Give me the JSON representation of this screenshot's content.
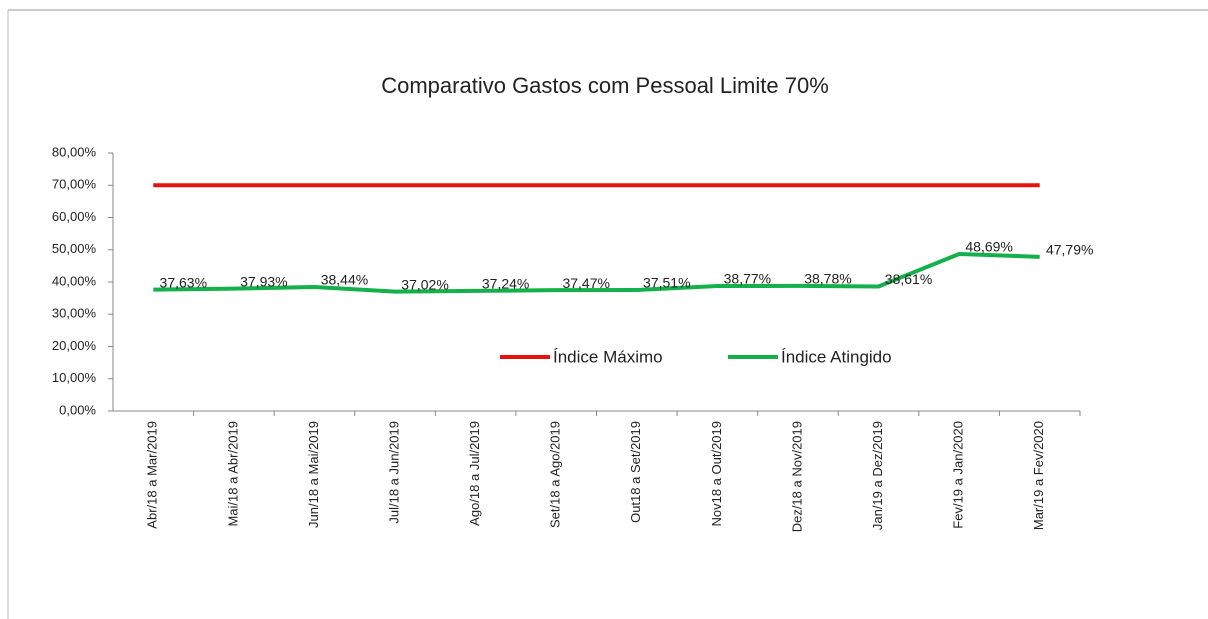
{
  "chart_data": {
    "type": "line",
    "title": "Comparativo Gastos com Pessoal Limite 70%",
    "categories": [
      "Abr/18 a Mar/2019",
      "Mai/18 a Abr/2019",
      "Jun/18 a Mai/2019",
      "Jul/18 a Jun/2019",
      "Ago/18 a Jul/2019",
      "Set/18 a Ago/2019",
      "Out18 a Set/2019",
      "Nov18 a Out/2019",
      "Dez/18 a Nov/2019",
      "Jan/19 a Dez/2019",
      "Fev/19 a Jan/2020",
      "Mar/19 a Fev/2020"
    ],
    "series": [
      {
        "name": "Índice Máximo",
        "color": "#e8120c",
        "values": [
          70,
          70,
          70,
          70,
          70,
          70,
          70,
          70,
          70,
          70,
          70,
          70
        ]
      },
      {
        "name": "Índice Atingido",
        "color": "#14b14b",
        "values": [
          37.63,
          37.93,
          38.44,
          37.02,
          37.24,
          37.47,
          37.51,
          38.77,
          38.78,
          38.61,
          48.69,
          47.79
        ],
        "value_labels": [
          "37,63%",
          "37,93%",
          "38,44%",
          "37,02%",
          "37,24%",
          "37,47%",
          "37,51%",
          "38,77%",
          "38,78%",
          "38,61%",
          "48,69%",
          "47,79%"
        ]
      }
    ],
    "ylim": [
      0,
      80
    ],
    "yticks": [
      {
        "value": 0,
        "label": "0,00%"
      },
      {
        "value": 10,
        "label": "10,00%"
      },
      {
        "value": 20,
        "label": "20,00%"
      },
      {
        "value": 30,
        "label": "30,00%"
      },
      {
        "value": 40,
        "label": "40,00%"
      },
      {
        "value": 50,
        "label": "50,00%"
      },
      {
        "value": 60,
        "label": "60,00%"
      },
      {
        "value": 70,
        "label": "70,00%"
      },
      {
        "value": 80,
        "label": "80,00%"
      }
    ]
  }
}
